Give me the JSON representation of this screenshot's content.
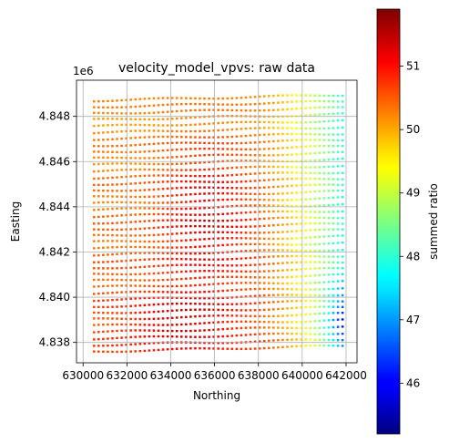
{
  "chart_data": {
    "type": "scatter",
    "title": "velocity_model_vpvs: raw data",
    "xlabel": "Northing",
    "ylabel": "Easting",
    "y_offset_label": "1e6",
    "xlim": [
      629700,
      642500
    ],
    "ylim": [
      4837100,
      4849600
    ],
    "x_ticks": [
      630000,
      632000,
      634000,
      636000,
      638000,
      640000,
      642000
    ],
    "x_tick_labels": [
      "630000",
      "632000",
      "634000",
      "636000",
      "638000",
      "640000",
      "642000"
    ],
    "y_ticks": [
      4838000,
      4840000,
      4842000,
      4844000,
      4846000,
      4848000
    ],
    "y_tick_labels": [
      "4.838",
      "4.840",
      "4.842",
      "4.844",
      "4.846",
      "4.848"
    ],
    "grid": true,
    "colorbar": {
      "label": "summed ratio",
      "colormap": "jet",
      "range": [
        45.2,
        51.9
      ],
      "ticks": [
        46,
        47,
        48,
        49,
        50,
        51
      ],
      "tick_labels": [
        "46",
        "47",
        "48",
        "49",
        "50",
        "51"
      ]
    },
    "point_grid": {
      "x_start": 630500,
      "x_end": 641900,
      "row_y_start": 4837600,
      "row_y_end": 4848700,
      "row_count": 40,
      "row_slope_per_x": 0.022,
      "x_step": 210
    },
    "value_field": {
      "regions": [
        {
          "name": "upper-left",
          "value": 50.0
        },
        {
          "name": "upper-right",
          "value": 49.0
        },
        {
          "name": "central-high",
          "value": 51.3
        },
        {
          "name": "lower-central-high",
          "value": 51.8
        },
        {
          "name": "right-edge-low",
          "value": 47.0
        },
        {
          "name": "lower-right-corner",
          "value": 45.8
        }
      ]
    }
  }
}
